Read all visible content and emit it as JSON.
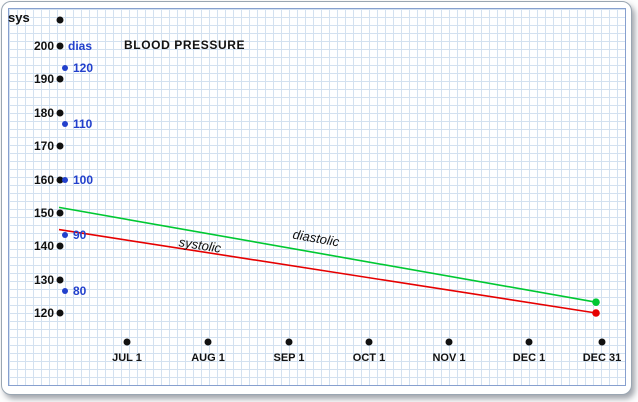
{
  "chart_data": {
    "type": "line",
    "title": "BLOOD PRESSURE",
    "grid": true,
    "legend": "inline-labels",
    "x_axis": {
      "tick_labels": [
        "JUL 1",
        "AUG 1",
        "SEP 1",
        "OCT 1",
        "NOV 1",
        "DEC 1",
        "DEC 31"
      ]
    },
    "sys_axis": {
      "label": "sys",
      "ticks": [
        200,
        190,
        180,
        170,
        160,
        150,
        140,
        130,
        120
      ],
      "range": [
        120,
        200
      ],
      "color": "#111111"
    },
    "dias_axis": {
      "label": "dias",
      "ticks": [
        120,
        110,
        100,
        90,
        80
      ],
      "range": [
        80,
        120
      ],
      "color": "#2240cc"
    },
    "series": [
      {
        "name": "systolic",
        "axis": "sys",
        "color": "#e60000",
        "start_value": 145,
        "end_value": 120,
        "x_span": [
          "chart-left",
          "DEC 31"
        ]
      },
      {
        "name": "diastolic",
        "axis": "dias",
        "color": "#00c832",
        "start_value": 95,
        "end_value": 78,
        "x_span": [
          "chart-left",
          "DEC 31"
        ]
      }
    ]
  }
}
